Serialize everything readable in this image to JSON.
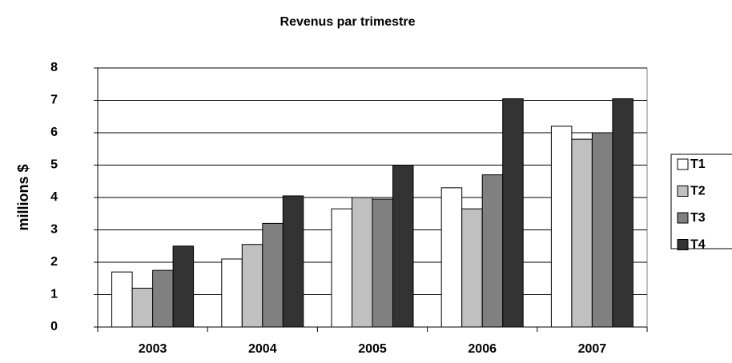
{
  "chart_data": {
    "type": "bar",
    "title": "Revenus par trimestre",
    "y_label": "millions $",
    "categories": [
      "2003",
      "2004",
      "2005",
      "2006",
      "2007"
    ],
    "series": [
      {
        "name": "T1",
        "color": "#ffffff",
        "values": [
          1.7,
          2.1,
          3.65,
          4.3,
          6.2
        ]
      },
      {
        "name": "T2",
        "color": "#c0c0c0",
        "values": [
          1.2,
          2.55,
          4.0,
          3.65,
          5.8
        ]
      },
      {
        "name": "T3",
        "color": "#808080",
        "values": [
          1.75,
          3.2,
          3.95,
          4.7,
          6.0
        ]
      },
      {
        "name": "T4",
        "color": "#333333",
        "values": [
          2.5,
          4.05,
          5.0,
          7.05,
          7.05
        ]
      }
    ],
    "ylim": [
      0,
      8
    ],
    "yticks": [
      0,
      1,
      2,
      3,
      4,
      5,
      6,
      7,
      8
    ],
    "grid": true,
    "legend": "right"
  }
}
